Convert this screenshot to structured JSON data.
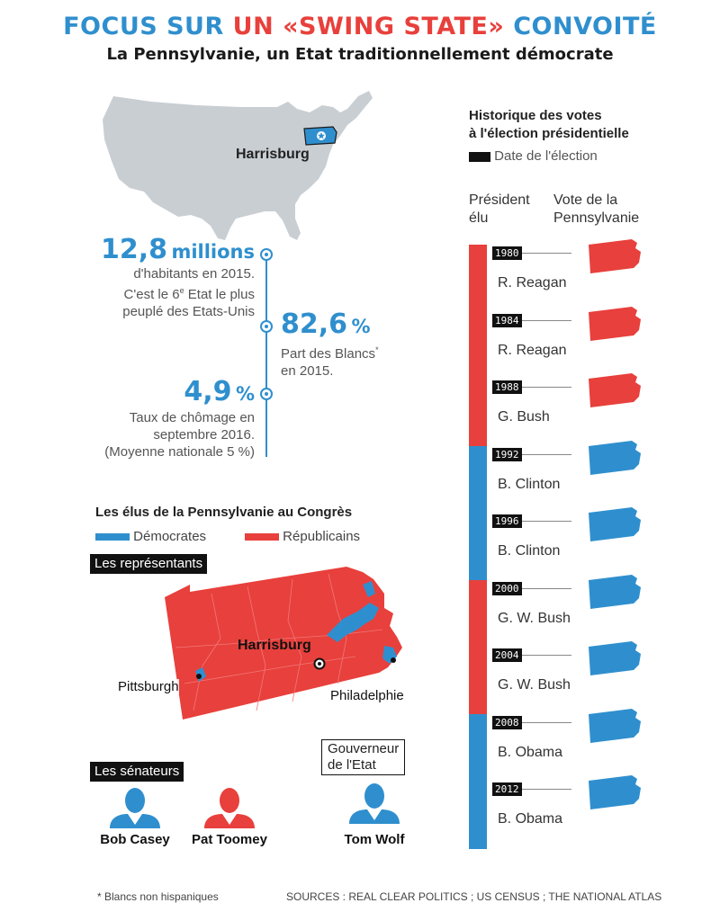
{
  "header": {
    "title_part1": "FOCUS SUR ",
    "title_part2": "UN «SWING STATE»",
    "title_part3": " CONVOITÉ",
    "subtitle": "La Pennsylvanie, un Etat traditionnellement démocrate"
  },
  "us_map": {
    "city": "Harrisburg"
  },
  "stats": {
    "population_value": "12,8",
    "population_unit": "millions",
    "population_line1": "d'habitants en 2015.",
    "population_line2_pre": "C'est le 6",
    "population_line2_sup": "e",
    "population_line2_post": " Etat le plus",
    "population_line3": "peuplé des Etats-Unis",
    "whites_value": "82,6",
    "whites_unit": "%",
    "whites_line1": "Part des Blancs",
    "whites_star": "*",
    "whites_line2": "en 2015.",
    "unemployment_value": "4,9",
    "unemployment_unit": "%",
    "unemployment_line1": "Taux de chômage en",
    "unemployment_line2": "septembre 2016.",
    "unemployment_line3": "(Moyenne nationale 5 %)"
  },
  "congress": {
    "title": "Les élus de la Pennsylvanie au Congrès",
    "legend_dem": "Démocrates",
    "legend_rep": "Républicains",
    "representatives_label": "Les représentants",
    "city_harrisburg": "Harrisburg",
    "city_pittsburgh": "Pittsburgh",
    "city_philadelphie": "Philadelphie",
    "senators_label": "Les sénateurs",
    "governor_label_line1": "Gouverneur",
    "governor_label_line2": "de l'Etat",
    "people": [
      {
        "name": "Bob Casey",
        "party": "dem"
      },
      {
        "name": "Pat Toomey",
        "party": "rep"
      },
      {
        "name": "Tom Wolf",
        "party": "dem"
      }
    ]
  },
  "history": {
    "title_line1": "Historique des votes",
    "title_line2": "à l'élection présidentielle",
    "legend_date": "Date de l'élection",
    "col1_line1": "Président",
    "col1_line2": "élu",
    "col2_line1": "Vote de la",
    "col2_line2": "Pennsylvanie",
    "elections": [
      {
        "year": "1980",
        "president": "R. Reagan",
        "winner_party": "rep",
        "pa_vote": "rep"
      },
      {
        "year": "1984",
        "president": "R. Reagan",
        "winner_party": "rep",
        "pa_vote": "rep"
      },
      {
        "year": "1988",
        "president": "G. Bush",
        "winner_party": "rep",
        "pa_vote": "rep"
      },
      {
        "year": "1992",
        "president": "B. Clinton",
        "winner_party": "dem",
        "pa_vote": "dem"
      },
      {
        "year": "1996",
        "president": "B. Clinton",
        "winner_party": "dem",
        "pa_vote": "dem"
      },
      {
        "year": "2000",
        "president": "G. W. Bush",
        "winner_party": "rep",
        "pa_vote": "dem"
      },
      {
        "year": "2004",
        "president": "G. W. Bush",
        "winner_party": "rep",
        "pa_vote": "dem"
      },
      {
        "year": "2008",
        "president": "B. Obama",
        "winner_party": "dem",
        "pa_vote": "dem"
      },
      {
        "year": "2012",
        "president": "B. Obama",
        "winner_party": "dem",
        "pa_vote": "dem"
      }
    ]
  },
  "footer": {
    "footnote": "* Blancs non hispaniques",
    "sources": "SOURCES : REAL CLEAR POLITICS ; US CENSUS ; THE NATIONAL ATLAS"
  },
  "colors": {
    "dem": "#2f8fce",
    "rep": "#e8403c",
    "gray": "#c9ced3",
    "black": "#111111"
  },
  "icons": [
    "star-icon",
    "person-icon",
    "pennsylvania-shape-icon",
    "us-map",
    "city-marker-icon"
  ]
}
